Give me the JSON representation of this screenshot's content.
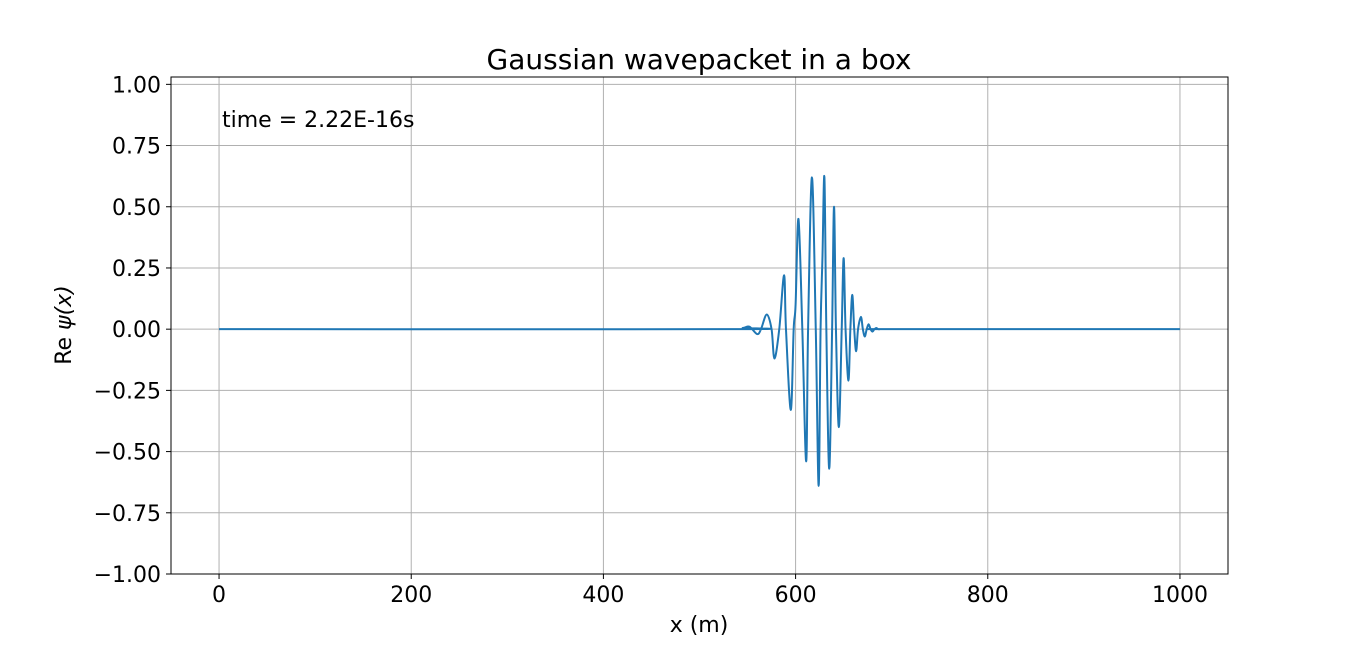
{
  "chart_data": {
    "type": "line",
    "title": "Gaussian wavepacket in a box",
    "xlabel": "x (m)",
    "ylabel_prefix": "Re ",
    "ylabel_math": "ψ(x)",
    "annotation": "time = 2.22E-16s",
    "xlim": [
      -50,
      1050
    ],
    "ylim": [
      -1.0,
      1.03
    ],
    "xticks": [
      0,
      200,
      400,
      600,
      800,
      1000
    ],
    "xtick_labels": [
      "0",
      "200",
      "400",
      "600",
      "800",
      "1000"
    ],
    "yticks": [
      1.0,
      0.75,
      0.5,
      0.25,
      0.0,
      -0.25,
      -0.5,
      -0.75,
      -1.0
    ],
    "ytick_labels": [
      "1.00",
      "0.75",
      "0.50",
      "0.25",
      "0.00",
      "−0.25",
      "−0.50",
      "−0.75",
      "−1.00"
    ],
    "grid": true,
    "series": [
      {
        "color": "#1f77b4",
        "x": [
          0,
          530,
          545,
          552,
          560,
          564,
          570,
          575,
          578,
          583,
          588,
          590,
          595,
          598,
          600,
          603,
          607,
          611,
          613,
          617,
          621,
          624,
          626,
          628,
          630,
          632,
          635,
          638,
          640,
          642,
          645,
          648,
          650,
          652,
          655,
          657,
          659,
          661,
          663,
          665,
          668,
          670,
          672,
          674,
          676,
          678,
          680,
          682,
          684,
          686,
          688,
          690,
          700,
          1000
        ],
        "y": [
          0,
          0,
          0.005,
          0.01,
          -0.02,
          0.0,
          0.06,
          0.0,
          -0.12,
          0.0,
          0.22,
          0.0,
          -0.33,
          0.0,
          0.1,
          0.45,
          0.0,
          -0.54,
          0.0,
          0.62,
          0.0,
          -0.64,
          0.0,
          0.3,
          0.62,
          0.0,
          -0.57,
          0.0,
          0.5,
          0.0,
          -0.4,
          0.0,
          0.29,
          0.0,
          -0.21,
          0.0,
          0.14,
          0.0,
          -0.09,
          0.0,
          0.05,
          0.0,
          -0.03,
          0.0,
          0.02,
          0.0,
          -0.01,
          0.0,
          0.005,
          0.0,
          0.0,
          0.0,
          0,
          0
        ]
      }
    ]
  }
}
